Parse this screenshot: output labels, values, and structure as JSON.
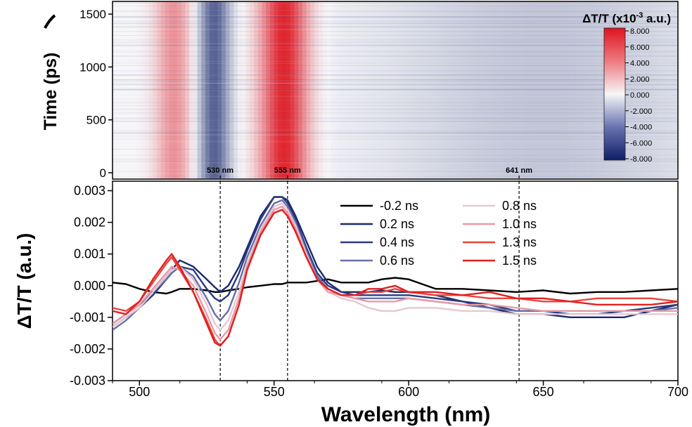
{
  "chart_data": [
    {
      "type": "heatmap",
      "title": "",
      "xlabel": "",
      "ylabel": "Time (ps)",
      "xlim": [
        490,
        700
      ],
      "ylim": [
        -60,
        1620
      ],
      "yticks": [
        0,
        500,
        1000,
        1500
      ],
      "colorbar": {
        "label_main": "ΔT/T (x10",
        "label_exp": "-3",
        "label_tail": " a.u.)",
        "ticks": [
          "8.000",
          "6.000",
          "4.000",
          "2.000",
          "0.000",
          "-2.000",
          "-4.000",
          "-6.000",
          "-8.000"
        ],
        "range": [
          -8,
          8
        ]
      },
      "markers": [
        {
          "wavelength": 530,
          "label": "530 nm"
        },
        {
          "wavelength": 555,
          "label": "555 nm"
        },
        {
          "wavelength": 641,
          "label": "641 nm"
        }
      ],
      "bands": [
        {
          "center": 512,
          "width": 7,
          "amplitude": 3.5
        },
        {
          "center": 527,
          "width": 6,
          "amplitude": -5.5
        },
        {
          "center": 553,
          "width": 9,
          "amplitude": 7.5
        },
        {
          "center": 650,
          "width": 60,
          "amplitude": -1.8
        }
      ]
    },
    {
      "type": "line",
      "title": "",
      "xlabel": "Wavelength (nm)",
      "ylabel": "ΔT/T (a.u.)",
      "xlim": [
        490,
        700
      ],
      "ylim": [
        -0.003,
        0.0033
      ],
      "xticks": [
        500,
        550,
        600,
        650,
        700
      ],
      "yticks": [
        -0.003,
        -0.002,
        -0.001,
        0.0,
        0.001,
        0.002,
        0.003
      ],
      "ytick_labels": [
        "-0.003",
        "-0.002",
        "-0.001",
        "0.000",
        "0.001",
        "0.002",
        "0.003"
      ],
      "legend_position": "top-right",
      "x": [
        490,
        495,
        500,
        505,
        510,
        512,
        515,
        520,
        525,
        528,
        530,
        533,
        537,
        540,
        545,
        550,
        553,
        555,
        558,
        562,
        566,
        570,
        575,
        580,
        585,
        590,
        595,
        600,
        610,
        620,
        630,
        640,
        650,
        660,
        670,
        680,
        690,
        700
      ],
      "series": [
        {
          "name": "-0.2 ns",
          "color": "#000000",
          "values": [
            0.0001,
            5e-05,
            -0.0001,
            -0.0002,
            -0.00025,
            -0.0002,
            -0.0001,
            -0.0001,
            -0.00015,
            -0.0002,
            -0.0002,
            -0.00015,
            -0.0001,
            -5e-05,
            0.0,
            5e-05,
            5e-05,
            0.0001,
            0.0001,
            0.0001,
            0.00015,
            0.0002,
            0.0001,
            0.0001,
            0.0001,
            0.0002,
            0.00025,
            0.0002,
            -0.0001,
            -0.0001,
            -0.00015,
            -0.0002,
            -0.00015,
            -0.00025,
            -0.0002,
            -0.0002,
            -0.00015,
            -0.0001
          ]
        },
        {
          "name": "0.2 ns",
          "color": "#1a2a6c",
          "values": [
            -0.0012,
            -0.0009,
            -0.0006,
            -0.0002,
            0.0003,
            0.0005,
            0.0008,
            0.0006,
            0.0002,
            -5e-05,
            -0.0002,
            0.0,
            0.0006,
            0.0012,
            0.0022,
            0.0028,
            0.0028,
            0.0027,
            0.0022,
            0.0014,
            0.0006,
            0.0001,
            -0.0002,
            -0.0002,
            -0.0002,
            -0.00015,
            -0.0002,
            -0.0002,
            -0.0003,
            -0.0005,
            -0.0007,
            -0.0009,
            -0.0009,
            -0.001,
            -0.001,
            -0.001,
            -0.0008,
            -0.0006
          ]
        },
        {
          "name": "0.4 ns",
          "color": "#2b3a80",
          "values": [
            -0.0013,
            -0.001,
            -0.0007,
            -0.0003,
            0.0002,
            0.0004,
            0.0006,
            0.0005,
            -0.0001,
            -0.0004,
            -0.0005,
            -0.0003,
            0.0004,
            0.0011,
            0.0021,
            0.0028,
            0.0028,
            0.0026,
            0.0021,
            0.0012,
            0.0004,
            0.0,
            -0.0002,
            -0.0003,
            -0.0003,
            -0.0003,
            -0.0003,
            -0.0003,
            -0.0004,
            -0.0005,
            -0.0006,
            -0.0008,
            -0.0008,
            -0.0009,
            -0.0009,
            -0.0008,
            -0.0007,
            -0.0006
          ]
        },
        {
          "name": "0.6 ns",
          "color": "#6670a8",
          "values": [
            -0.0014,
            -0.0011,
            -0.0007,
            -0.0002,
            0.0002,
            0.0004,
            0.0006,
            0.0003,
            -0.0004,
            -0.0009,
            -0.0011,
            -0.0008,
            0.0001,
            0.0009,
            0.0019,
            0.0026,
            0.0027,
            0.0025,
            0.002,
            0.0011,
            0.0003,
            -0.0001,
            -0.0003,
            -0.0004,
            -0.0004,
            -0.0004,
            -0.0004,
            -0.0004,
            -0.0005,
            -0.0006,
            -0.0007,
            -0.0008,
            -0.0008,
            -0.0008,
            -0.0008,
            -0.0008,
            -0.0008,
            -0.0007
          ]
        },
        {
          "name": "0.8 ns",
          "color": "#e6c8d2",
          "values": [
            -0.0013,
            -0.001,
            -0.0007,
            -0.0002,
            0.0003,
            0.0005,
            0.0006,
            0.0002,
            -0.0006,
            -0.0012,
            -0.0014,
            -0.0011,
            -0.0002,
            0.0007,
            0.0018,
            0.0025,
            0.0026,
            0.0024,
            0.0019,
            0.001,
            0.0002,
            -0.0002,
            -0.0004,
            -0.0005,
            -0.0007,
            -0.0008,
            -0.0008,
            -0.0007,
            -0.0007,
            -0.0008,
            -0.0008,
            -0.0009,
            -0.0009,
            -0.0009,
            -0.0009,
            -0.0009,
            -0.0009,
            -0.0009
          ]
        },
        {
          "name": "1.0 ns",
          "color": "#e89aa6",
          "values": [
            -0.0012,
            -0.0009,
            -0.0006,
            -0.0001,
            0.0004,
            0.0006,
            0.0005,
            0.0,
            -0.0009,
            -0.0015,
            -0.0017,
            -0.0014,
            -0.0004,
            0.0006,
            0.0017,
            0.0024,
            0.0025,
            0.0023,
            0.0018,
            0.0009,
            0.0002,
            -0.0002,
            -0.0003,
            -0.0004,
            -0.0005,
            -0.0005,
            -0.0005,
            -0.0004,
            -0.0005,
            -0.0006,
            -0.0006,
            -0.0007,
            -0.0008,
            -0.0008,
            -0.0008,
            -0.0008,
            -0.0008,
            -0.0008
          ]
        },
        {
          "name": "1.3 ns",
          "color": "#e8443e",
          "values": [
            -0.0007,
            -0.0008,
            -0.0005,
            0.0001,
            0.0007,
            0.0009,
            0.0005,
            -0.0002,
            -0.0011,
            -0.0017,
            -0.0019,
            -0.0016,
            -0.0006,
            0.0005,
            0.0016,
            0.0023,
            0.0024,
            0.0022,
            0.0017,
            0.0009,
            0.0002,
            -0.0001,
            -0.0003,
            -0.0003,
            -0.0002,
            -0.0002,
            -0.0001,
            -0.0002,
            -0.0003,
            -0.0003,
            -0.0004,
            -0.0004,
            -0.0005,
            -0.0005,
            -0.0004,
            -0.0004,
            -0.0004,
            -0.0005
          ]
        },
        {
          "name": "1.5 ns",
          "color": "#e02020",
          "values": [
            -0.0008,
            -0.0009,
            -0.0005,
            0.0002,
            0.0008,
            0.001,
            0.0006,
            -0.0002,
            -0.0012,
            -0.0018,
            -0.0019,
            -0.0016,
            -0.0006,
            0.0005,
            0.0016,
            0.0023,
            0.0024,
            0.0022,
            0.0017,
            0.0009,
            0.0002,
            -0.0001,
            -0.0003,
            -0.0003,
            -0.0001,
            -0.0001,
            0.0,
            -0.0002,
            -0.0002,
            -0.0003,
            -0.0002,
            -0.0004,
            -0.0004,
            -0.0005,
            -0.0006,
            -0.0006,
            -0.0006,
            -0.0005
          ]
        }
      ],
      "vlines": [
        530,
        555,
        641
      ]
    }
  ]
}
